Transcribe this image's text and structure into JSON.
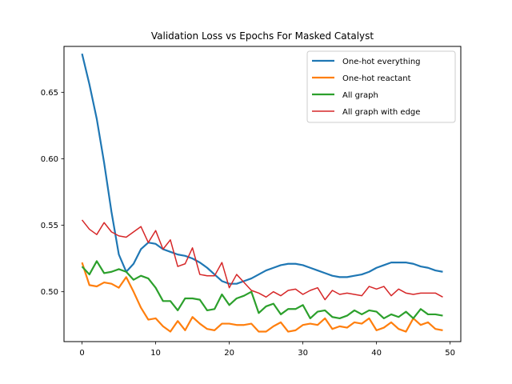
{
  "chart_data": {
    "type": "line",
    "title": "Validation Loss vs Epochs For Masked Catalyst",
    "xlabel": "",
    "ylabel": "",
    "xlim": [
      -2.45,
      51.45
    ],
    "ylim": [
      0.4625,
      0.6845
    ],
    "xticks": [
      0,
      10,
      20,
      30,
      40,
      50
    ],
    "yticks": [
      0.5,
      0.55,
      0.6,
      0.65
    ],
    "ytick_labels": [
      "0.50",
      "0.55",
      "0.60",
      "0.65"
    ],
    "legend_position": "top-right",
    "x": [
      0,
      1,
      2,
      3,
      4,
      5,
      6,
      7,
      8,
      9,
      10,
      11,
      12,
      13,
      14,
      15,
      16,
      17,
      18,
      19,
      20,
      21,
      22,
      23,
      24,
      25,
      26,
      27,
      28,
      29,
      30,
      31,
      32,
      33,
      34,
      35,
      36,
      37,
      38,
      39,
      40,
      41,
      42,
      43,
      44,
      45,
      46,
      47,
      48,
      49
    ],
    "series": [
      {
        "name": "One-hot everything",
        "color": "#1f77b4",
        "width": 2.2,
        "values": [
          0.679,
          0.656,
          0.63,
          0.597,
          0.56,
          0.528,
          0.515,
          0.521,
          0.532,
          0.537,
          0.536,
          0.532,
          0.53,
          0.528,
          0.527,
          0.525,
          0.522,
          0.518,
          0.513,
          0.508,
          0.506,
          0.506,
          0.508,
          0.51,
          0.513,
          0.516,
          0.518,
          0.52,
          0.521,
          0.521,
          0.52,
          0.518,
          0.516,
          0.514,
          0.512,
          0.511,
          0.511,
          0.512,
          0.513,
          0.515,
          0.518,
          0.52,
          0.522,
          0.522,
          0.522,
          0.521,
          0.519,
          0.518,
          0.516,
          0.515
        ]
      },
      {
        "name": "One-hot reactant",
        "color": "#ff7f0e",
        "width": 2.2,
        "values": [
          0.522,
          0.505,
          0.504,
          0.507,
          0.506,
          0.503,
          0.511,
          0.5,
          0.488,
          0.479,
          0.48,
          0.474,
          0.47,
          0.478,
          0.471,
          0.481,
          0.476,
          0.472,
          0.471,
          0.476,
          0.476,
          0.475,
          0.475,
          0.476,
          0.47,
          0.47,
          0.474,
          0.477,
          0.47,
          0.471,
          0.475,
          0.476,
          0.475,
          0.48,
          0.472,
          0.474,
          0.473,
          0.477,
          0.476,
          0.48,
          0.471,
          0.473,
          0.477,
          0.472,
          0.47,
          0.48,
          0.475,
          0.477,
          0.472,
          0.471
        ]
      },
      {
        "name": "All graph",
        "color": "#2ca02c",
        "width": 2.2,
        "values": [
          0.519,
          0.513,
          0.523,
          0.514,
          0.515,
          0.517,
          0.515,
          0.509,
          0.512,
          0.51,
          0.503,
          0.493,
          0.493,
          0.486,
          0.495,
          0.495,
          0.494,
          0.486,
          0.487,
          0.498,
          0.49,
          0.495,
          0.497,
          0.5,
          0.484,
          0.489,
          0.491,
          0.483,
          0.487,
          0.487,
          0.49,
          0.48,
          0.485,
          0.486,
          0.481,
          0.48,
          0.482,
          0.486,
          0.483,
          0.486,
          0.485,
          0.48,
          0.483,
          0.481,
          0.485,
          0.48,
          0.487,
          0.483,
          0.483,
          0.482
        ]
      },
      {
        "name": "All graph with edge",
        "color": "#d62728",
        "width": 1.5,
        "values": [
          0.554,
          0.547,
          0.543,
          0.552,
          0.545,
          0.542,
          0.541,
          0.545,
          0.549,
          0.537,
          0.546,
          0.532,
          0.539,
          0.519,
          0.521,
          0.533,
          0.513,
          0.512,
          0.512,
          0.522,
          0.503,
          0.513,
          0.507,
          0.501,
          0.499,
          0.496,
          0.5,
          0.497,
          0.501,
          0.502,
          0.498,
          0.501,
          0.503,
          0.494,
          0.501,
          0.498,
          0.499,
          0.498,
          0.497,
          0.504,
          0.502,
          0.504,
          0.497,
          0.502,
          0.499,
          0.498,
          0.499,
          0.499,
          0.499,
          0.496
        ]
      }
    ]
  }
}
